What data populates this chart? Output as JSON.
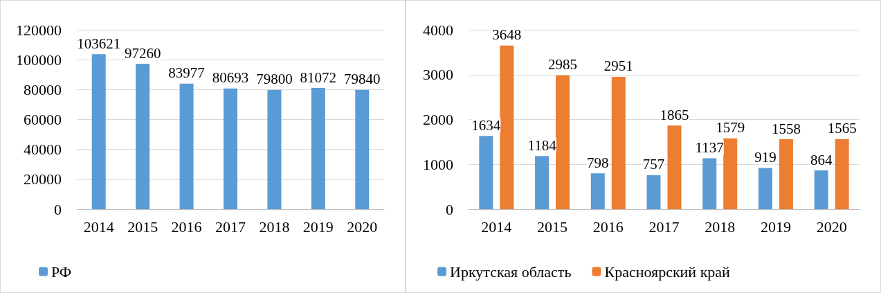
{
  "chart_data": [
    {
      "type": "bar",
      "categories": [
        "2014",
        "2015",
        "2016",
        "2017",
        "2018",
        "2019",
        "2020"
      ],
      "series": [
        {
          "name": "РФ",
          "color": "#5b9bd5",
          "values": [
            103621,
            97260,
            83977,
            80693,
            79800,
            81072,
            79840
          ]
        }
      ],
      "ylim": [
        0,
        120000
      ],
      "yticks": [
        0,
        20000,
        40000,
        60000,
        80000,
        100000,
        120000
      ],
      "grid": "y",
      "legend": "bottom",
      "data_labels": true
    },
    {
      "type": "bar",
      "categories": [
        "2014",
        "2015",
        "2016",
        "2017",
        "2018",
        "2019",
        "2020"
      ],
      "series": [
        {
          "name": "Иркутская область",
          "color": "#5b9bd5",
          "values": [
            1634,
            1184,
            798,
            757,
            1137,
            919,
            864
          ]
        },
        {
          "name": "Красноярский край",
          "color": "#ed7d31",
          "values": [
            3648,
            2985,
            2951,
            1865,
            1579,
            1558,
            1565
          ]
        }
      ],
      "ylim": [
        0,
        4000
      ],
      "yticks": [
        0,
        1000,
        2000,
        3000,
        4000
      ],
      "grid": "y",
      "legend": "bottom",
      "data_labels": true
    }
  ]
}
